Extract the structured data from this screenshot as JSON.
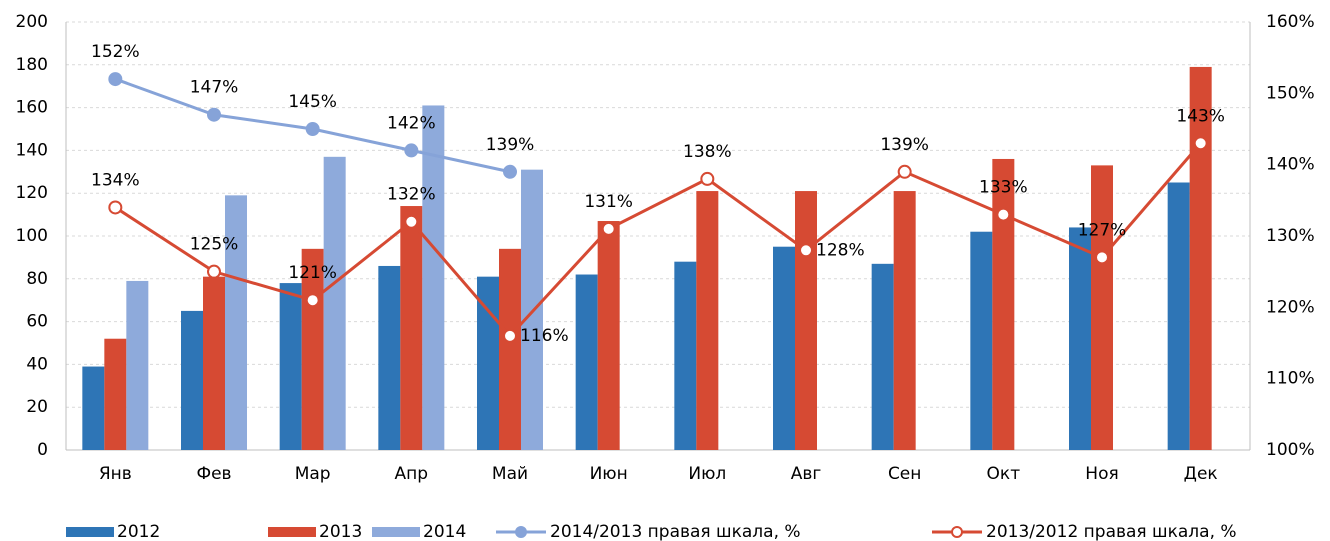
{
  "chart_data": {
    "type": "bar_line",
    "categories": [
      "Янв",
      "Фев",
      "Мар",
      "Апр",
      "Май",
      "Июн",
      "Июл",
      "Авг",
      "Сен",
      "Окт",
      "Ноя",
      "Дек"
    ],
    "series": [
      {
        "name": "2012",
        "type": "bar",
        "color": "#2e75b6",
        "values": [
          39,
          65,
          78,
          86,
          81,
          82,
          88,
          95,
          87,
          102,
          104,
          125
        ]
      },
      {
        "name": "2013",
        "type": "bar",
        "color": "#d64a33",
        "values": [
          52,
          81,
          94,
          114,
          94,
          107,
          121,
          121,
          121,
          136,
          133,
          179
        ]
      },
      {
        "name": "2014",
        "type": "bar",
        "color": "#8eaadb",
        "values": [
          79,
          119,
          137,
          161,
          131,
          null,
          null,
          null,
          null,
          null,
          null,
          null
        ]
      },
      {
        "name": "2014/2013 правая шкала, %",
        "type": "line",
        "axis": "y2",
        "color": "#86a3d8",
        "marker_fill": "#86a3d8",
        "values": [
          152,
          147,
          145,
          142,
          139,
          null,
          null,
          null,
          null,
          null,
          null,
          null
        ],
        "value_labels": [
          "152%",
          "147%",
          "145%",
          "142%",
          "139%",
          null,
          null,
          null,
          null,
          null,
          null,
          null
        ]
      },
      {
        "name": "2013/2012 правая шкала, %",
        "type": "line",
        "axis": "y2",
        "color": "#d64a33",
        "marker_fill": "#ffffff",
        "values": [
          134,
          125,
          121,
          132,
          116,
          131,
          138,
          128,
          139,
          133,
          127,
          143
        ],
        "value_labels": [
          "134%",
          "125%",
          "121%",
          "132%",
          "116%",
          "131%",
          "138%",
          "128%",
          "139%",
          "133%",
          "127%",
          "143%"
        ]
      }
    ],
    "ylim": [
      0,
      200
    ],
    "yticks": [
      0,
      20,
      40,
      60,
      80,
      100,
      120,
      140,
      160,
      180,
      200
    ],
    "y2lim": [
      100,
      160
    ],
    "y2ticks": [
      {
        "value": 100,
        "label": "100%"
      },
      {
        "value": 110,
        "label": "110%"
      },
      {
        "value": 120,
        "label": "120%"
      },
      {
        "value": 130,
        "label": "130%"
      },
      {
        "value": 140,
        "label": "140%"
      },
      {
        "value": 150,
        "label": "150%"
      },
      {
        "value": 160,
        "label": "160%"
      }
    ],
    "grid": true,
    "legend": "bottom"
  }
}
